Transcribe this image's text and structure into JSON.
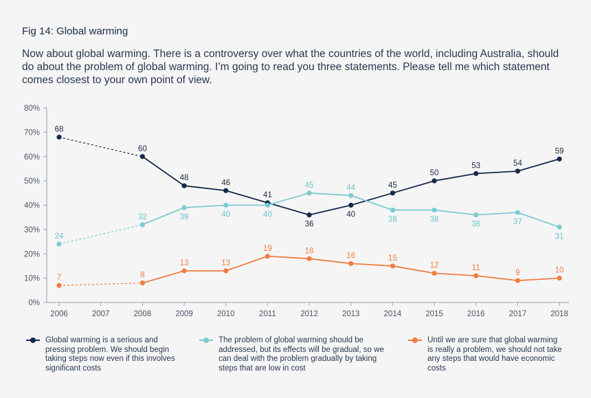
{
  "figure": {
    "title": "Fig 14: Global warming",
    "question": "Now about global warming. There is a controversy over what the countries of the world, including Australia, should do about the problem of global warming. I’m going to read you three statements. Please tell me which statement comes closest to your own point of view."
  },
  "legend": [
    {
      "text": "Global warming is a serious and pressing problem. We should begin taking steps now even if this involves significant costs"
    },
    {
      "text": "The problem of global warming should be addressed, but its effects will be gradual, so we can deal with the problem gradually by taking steps that are low in cost"
    },
    {
      "text": "Until we are sure that global warming is really a problem, we should not take any steps that would have economic costs"
    }
  ],
  "chart_data": {
    "type": "line",
    "title": "Fig 14: Global warming",
    "x": [
      2006,
      2007,
      2008,
      2009,
      2010,
      2011,
      2012,
      2013,
      2014,
      2015,
      2016,
      2017,
      2018
    ],
    "x_tick_labels": [
      "2006",
      "2007",
      "2008",
      "2009",
      "2010",
      "2011",
      "2012",
      "2013",
      "2014",
      "2015",
      "2016",
      "2017",
      "2018"
    ],
    "ylim": [
      0,
      80
    ],
    "y_ticks": [
      0,
      10,
      20,
      30,
      40,
      50,
      60,
      70,
      80
    ],
    "y_tick_labels": [
      "0%",
      "10%",
      "20%",
      "30%",
      "40%",
      "50%",
      "60%",
      "70%",
      "80%"
    ],
    "grid": false,
    "legend_position": "bottom",
    "series": [
      {
        "name": "Global warming is a serious and pressing problem. We should begin taking steps now even if this involves significant costs",
        "color": "#15294a",
        "label_color": "#1b2a41",
        "dashed_segment": "2006-2008",
        "points": [
          {
            "x": 2006,
            "y": 68,
            "label": "68",
            "label_pos": "above"
          },
          {
            "x": 2008,
            "y": 60,
            "label": "60",
            "label_pos": "above"
          },
          {
            "x": 2009,
            "y": 48,
            "label": "48",
            "label_pos": "above"
          },
          {
            "x": 2010,
            "y": 46,
            "label": "46",
            "label_pos": "above"
          },
          {
            "x": 2011,
            "y": 41,
            "label": "41",
            "label_pos": "above"
          },
          {
            "x": 2012,
            "y": 36,
            "label": "36",
            "label_pos": "below"
          },
          {
            "x": 2013,
            "y": 40,
            "label": "40",
            "label_pos": "below"
          },
          {
            "x": 2014,
            "y": 45,
            "label": "45",
            "label_pos": "above"
          },
          {
            "x": 2015,
            "y": 50,
            "label": "50",
            "label_pos": "above"
          },
          {
            "x": 2016,
            "y": 53,
            "label": "53",
            "label_pos": "above"
          },
          {
            "x": 2017,
            "y": 54,
            "label": "54",
            "label_pos": "above"
          },
          {
            "x": 2018,
            "y": 59,
            "label": "59",
            "label_pos": "above"
          }
        ]
      },
      {
        "name": "The problem of global warming should be addressed, but its effects will be gradual, so we can deal with the problem gradually by taking steps that are low in cost",
        "color": "#7ccbd1",
        "label_color": "#6cc3ca",
        "dashed_segment": "2006-2008",
        "points": [
          {
            "x": 2006,
            "y": 24,
            "label": "24",
            "label_pos": "above"
          },
          {
            "x": 2008,
            "y": 32,
            "label": "32",
            "label_pos": "above"
          },
          {
            "x": 2009,
            "y": 39,
            "label": "39",
            "label_pos": "below"
          },
          {
            "x": 2010,
            "y": 40,
            "label": "40",
            "label_pos": "below"
          },
          {
            "x": 2011,
            "y": 40,
            "label": "40",
            "label_pos": "below"
          },
          {
            "x": 2012,
            "y": 45,
            "label": "45",
            "label_pos": "above"
          },
          {
            "x": 2013,
            "y": 44,
            "label": "44",
            "label_pos": "above"
          },
          {
            "x": 2014,
            "y": 38,
            "label": "38",
            "label_pos": "below"
          },
          {
            "x": 2015,
            "y": 38,
            "label": "38",
            "label_pos": "below"
          },
          {
            "x": 2016,
            "y": 36,
            "label": "36",
            "label_pos": "below"
          },
          {
            "x": 2017,
            "y": 37,
            "label": "37",
            "label_pos": "below"
          },
          {
            "x": 2018,
            "y": 31,
            "label": "31",
            "label_pos": "below"
          }
        ]
      },
      {
        "name": "Until we are sure that global warming is really a problem, we should not take any steps that would have economic costs",
        "color": "#ef7d42",
        "label_color": "#ef7d42",
        "dashed_segment": "2006-2008",
        "points": [
          {
            "x": 2006,
            "y": 7,
            "label": "7",
            "label_pos": "above"
          },
          {
            "x": 2008,
            "y": 8,
            "label": "8",
            "label_pos": "above"
          },
          {
            "x": 2009,
            "y": 13,
            "label": "13",
            "label_pos": "above"
          },
          {
            "x": 2010,
            "y": 13,
            "label": "13",
            "label_pos": "above"
          },
          {
            "x": 2011,
            "y": 19,
            "label": "19",
            "label_pos": "above"
          },
          {
            "x": 2012,
            "y": 18,
            "label": "18",
            "label_pos": "above"
          },
          {
            "x": 2013,
            "y": 16,
            "label": "16",
            "label_pos": "above"
          },
          {
            "x": 2014,
            "y": 15,
            "label": "15",
            "label_pos": "above"
          },
          {
            "x": 2015,
            "y": 12,
            "label": "12",
            "label_pos": "above"
          },
          {
            "x": 2016,
            "y": 11,
            "label": "11",
            "label_pos": "above"
          },
          {
            "x": 2017,
            "y": 9,
            "label": "9",
            "label_pos": "above"
          },
          {
            "x": 2018,
            "y": 10,
            "label": "10",
            "label_pos": "above"
          }
        ]
      }
    ]
  }
}
